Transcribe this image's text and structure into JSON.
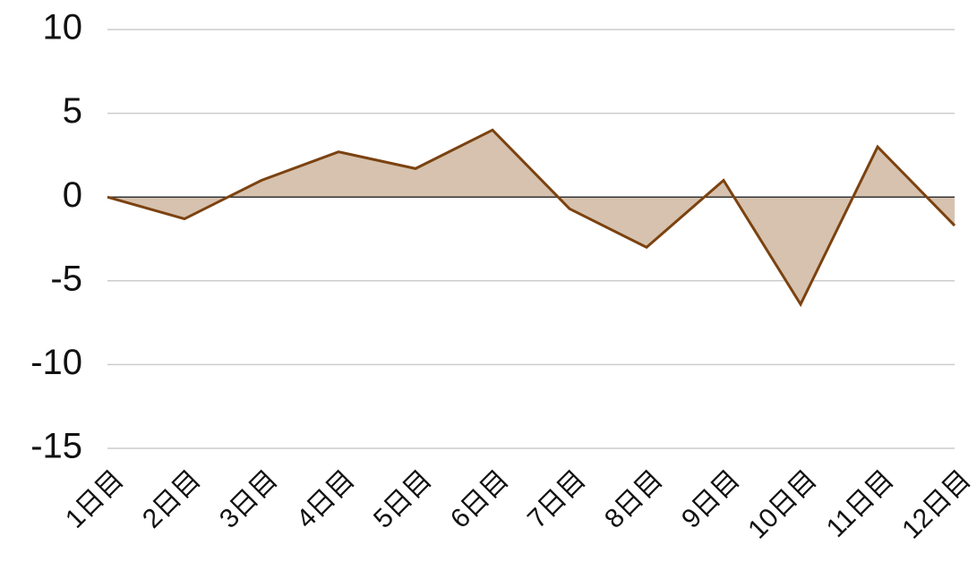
{
  "chart_data": {
    "type": "area",
    "categories": [
      "1日目",
      "2日目",
      "3日目",
      "4日目",
      "5日目",
      "6日目",
      "7日目",
      "8日目",
      "9日目",
      "10日目",
      "11日目",
      "12日目"
    ],
    "values": [
      0,
      -1.3,
      1.0,
      2.7,
      1.7,
      4.0,
      -0.7,
      -3.0,
      1.0,
      -6.4,
      3.0,
      -1.7
    ],
    "color": "#7b4210",
    "fill": "#d6c2ae",
    "ylim": [
      -15,
      10
    ],
    "yticks": [
      -15,
      -10,
      -5,
      0,
      5,
      10
    ],
    "grid": true
  }
}
